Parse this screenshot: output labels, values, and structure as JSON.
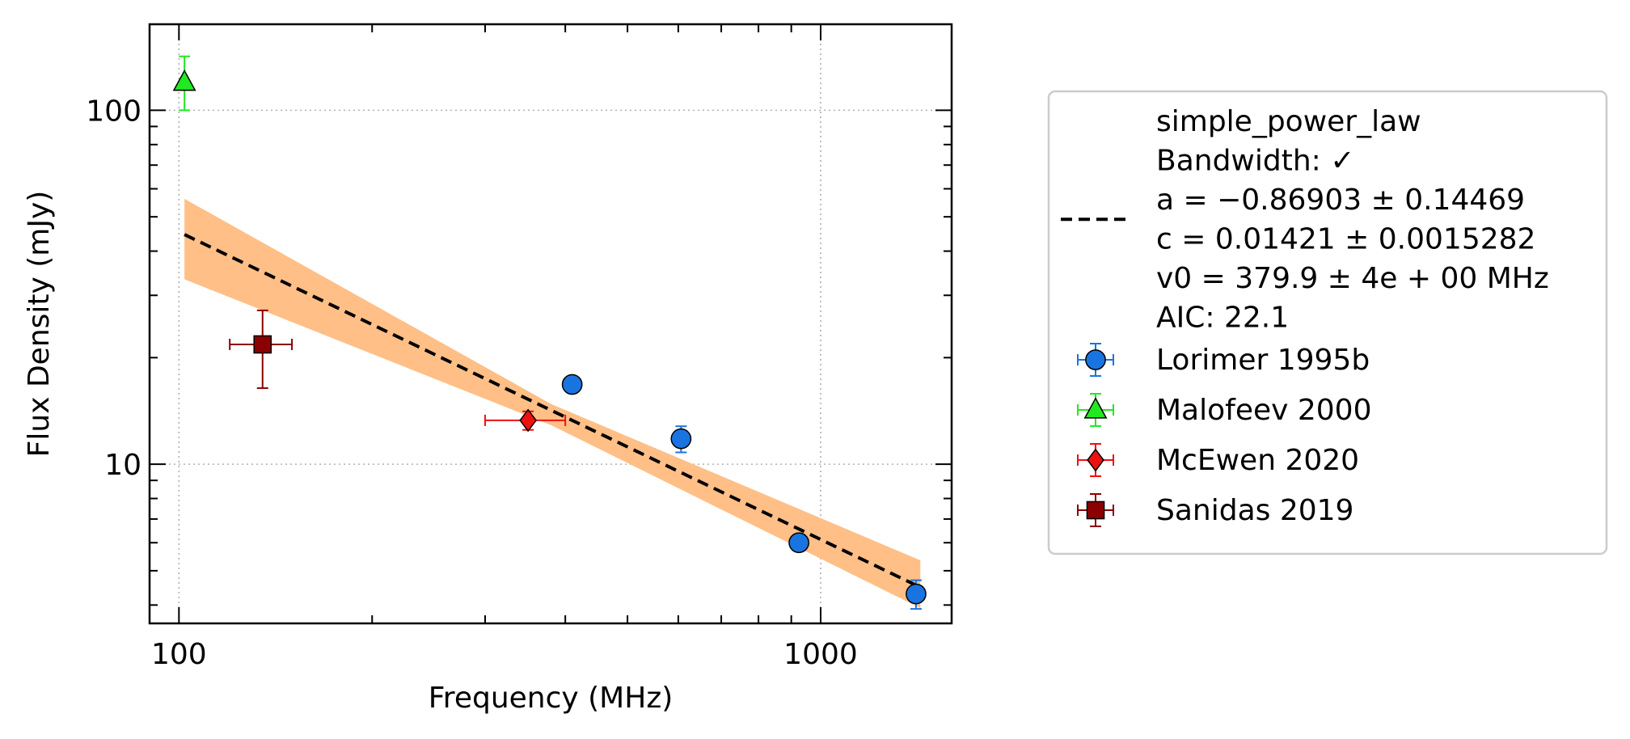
{
  "chart_data": {
    "type": "scatter",
    "title": "",
    "xlabel": "Frequency (MHz)",
    "ylabel": "Flux Density (mJy)",
    "x_scale": "log",
    "y_scale": "log",
    "xlim": [
      90,
      1600
    ],
    "ylim": [
      3.55,
      175
    ],
    "x_major_ticks": [
      {
        "value": 100,
        "label": "100"
      },
      {
        "value": 1000,
        "label": "1000"
      }
    ],
    "y_major_ticks": [
      {
        "value": 10,
        "label": "10"
      },
      {
        "value": 100,
        "label": "100"
      }
    ],
    "grid": true,
    "legend_position": "outside-right",
    "fit": {
      "name": "simple_power_law",
      "legend_lines": [
        "simple_power_law",
        "Bandwidth: ✓",
        "a = −0.86903 ± 0.14469",
        "c = 0.01421 ± 0.0015282",
        "v0 = 379.9 ± 4e + 00 MHz",
        "AIC: 22.1"
      ],
      "a": -0.86903,
      "c": 0.01421,
      "v0": 379.9,
      "x_range": [
        102,
        1430
      ],
      "band_color": "#ffbf86",
      "line_color": "#000000",
      "band": [
        {
          "x": 102,
          "lower": 33.3,
          "upper": 56.2
        },
        {
          "x": 380,
          "lower": 12.9,
          "upper": 14.8
        },
        {
          "x": 1430,
          "lower": 3.92,
          "upper": 5.35
        }
      ]
    },
    "series": [
      {
        "name": "Lorimer 1995b",
        "marker": "circle",
        "color": "#1a74e0",
        "points": [
          {
            "x": 410,
            "y": 16.8,
            "yerr": [
              0.5,
              0.5
            ],
            "xerr": [
              0,
              0
            ]
          },
          {
            "x": 606,
            "y": 11.8,
            "yerr": [
              1.0,
              1.0
            ],
            "xerr": [
              0,
              0
            ]
          },
          {
            "x": 925,
            "y": 6.0,
            "yerr": [
              0.3,
              0.3
            ],
            "xerr": [
              0,
              0
            ]
          },
          {
            "x": 1408,
            "y": 4.3,
            "yerr": [
              0.4,
              0.4
            ],
            "xerr": [
              0,
              0
            ]
          }
        ]
      },
      {
        "name": "Malofeev 2000",
        "marker": "triangle",
        "color": "#22e822",
        "points": [
          {
            "x": 102,
            "y": 120,
            "yerr": [
              20,
              22
            ],
            "xerr": [
              0,
              0
            ]
          }
        ]
      },
      {
        "name": "McEwen 2020",
        "marker": "diamond",
        "color": "#ee1111",
        "points": [
          {
            "x": 350,
            "y": 13.3,
            "yerr": [
              0.8,
              0.8
            ],
            "xerr": [
              50,
              50
            ]
          }
        ]
      },
      {
        "name": "Sanidas 2019",
        "marker": "square",
        "color": "#8b0000",
        "points": [
          {
            "x": 135,
            "y": 21.8,
            "yerr": [
              5.4,
              5.4
            ],
            "xerr": [
              15,
              15
            ]
          }
        ]
      }
    ]
  }
}
